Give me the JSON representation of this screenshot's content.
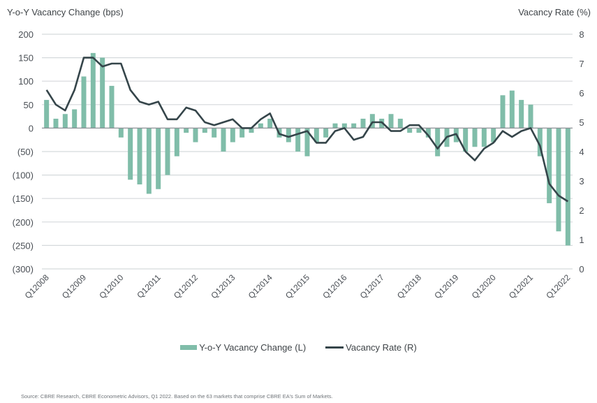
{
  "chart_data": {
    "type": "bar",
    "title": "",
    "left_axis_title": "Y-o-Y Vacancy Change (bps)",
    "right_axis_title": "Vacancy Rate (%)",
    "left_ylim": [
      -300,
      200
    ],
    "left_ticks": [
      200,
      150,
      100,
      50,
      0,
      -50,
      -100,
      -150,
      -200,
      -250,
      -300
    ],
    "left_tick_labels": [
      "200",
      "150",
      "100",
      "50",
      "0",
      "(50)",
      "(100)",
      "(150)",
      "(200)",
      "(250)",
      "(300)"
    ],
    "right_ylim": [
      0,
      8
    ],
    "right_ticks": [
      "8",
      "7",
      "6",
      "5",
      "4",
      "3",
      "2",
      "1",
      "0"
    ],
    "x_tick_labels": [
      "Q1 2008",
      "Q1 2009",
      "Q1 2010",
      "Q1 2011",
      "Q1 2012",
      "Q1 2013",
      "Q1 2014",
      "Q1 2015",
      "Q1 2016",
      "Q1 2017",
      "Q1 2018",
      "Q1 2019",
      "Q1 2020",
      "Q1 2021",
      "Q1 2022"
    ],
    "grid": true,
    "legend_position": "bottom-center",
    "categories": [
      "Q1 2008",
      "Q2 2008",
      "Q3 2008",
      "Q4 2008",
      "Q1 2009",
      "Q2 2009",
      "Q3 2009",
      "Q4 2009",
      "Q1 2010",
      "Q2 2010",
      "Q3 2010",
      "Q4 2010",
      "Q1 2011",
      "Q2 2011",
      "Q3 2011",
      "Q4 2011",
      "Q1 2012",
      "Q2 2012",
      "Q3 2012",
      "Q4 2012",
      "Q1 2013",
      "Q2 2013",
      "Q3 2013",
      "Q4 2013",
      "Q1 2014",
      "Q2 2014",
      "Q3 2014",
      "Q4 2014",
      "Q1 2015",
      "Q2 2015",
      "Q3 2015",
      "Q4 2015",
      "Q1 2016",
      "Q2 2016",
      "Q3 2016",
      "Q4 2016",
      "Q1 2017",
      "Q2 2017",
      "Q3 2017",
      "Q4 2017",
      "Q1 2018",
      "Q2 2018",
      "Q3 2018",
      "Q4 2018",
      "Q1 2019",
      "Q2 2019",
      "Q3 2019",
      "Q4 2019",
      "Q1 2020",
      "Q2 2020",
      "Q3 2020",
      "Q4 2020",
      "Q1 2021",
      "Q2 2021",
      "Q3 2021",
      "Q4 2021",
      "Q1 2022"
    ],
    "series": [
      {
        "name": "Y-o-Y Vacancy Change (L)",
        "type": "bar",
        "axis": "left",
        "color": "#80bda9",
        "values": [
          60,
          20,
          30,
          40,
          110,
          160,
          150,
          90,
          -20,
          -110,
          -120,
          -140,
          -130,
          -100,
          -60,
          -10,
          -30,
          -10,
          -20,
          -50,
          -30,
          -20,
          -10,
          10,
          20,
          -20,
          -30,
          -50,
          -60,
          -30,
          -20,
          10,
          10,
          10,
          20,
          30,
          20,
          30,
          20,
          -10,
          -10,
          -20,
          -60,
          -40,
          -30,
          -50,
          -40,
          -40,
          -30,
          70,
          80,
          60,
          50,
          -60,
          -160,
          -220,
          -250
        ]
      },
      {
        "name": "Vacancy Rate (R)",
        "type": "line",
        "axis": "right",
        "color": "#35454a",
        "values": [
          6.1,
          5.6,
          5.4,
          6.1,
          7.2,
          7.2,
          6.9,
          7.0,
          7.0,
          6.1,
          5.7,
          5.6,
          5.7,
          5.1,
          5.1,
          5.5,
          5.4,
          5.0,
          4.9,
          5.0,
          5.1,
          4.8,
          4.8,
          5.1,
          5.3,
          4.6,
          4.5,
          4.6,
          4.7,
          4.3,
          4.3,
          4.7,
          4.8,
          4.4,
          4.5,
          5.0,
          5.0,
          4.7,
          4.7,
          4.9,
          4.9,
          4.55,
          4.1,
          4.5,
          4.6,
          4.0,
          3.7,
          4.1,
          4.3,
          4.7,
          4.5,
          4.7,
          4.8,
          4.2,
          2.9,
          2.5,
          2.3
        ]
      }
    ]
  },
  "legend": {
    "bar_label": "Y-o-Y Vacancy Change (L)",
    "line_label": "Vacancy Rate (R)"
  },
  "footer": {
    "source": "Source: CBRE Research, CBRE Econometric Advisors, Q1 2022. Based on the 63 markets that comprise CBRE EA's Sum of Markets."
  }
}
